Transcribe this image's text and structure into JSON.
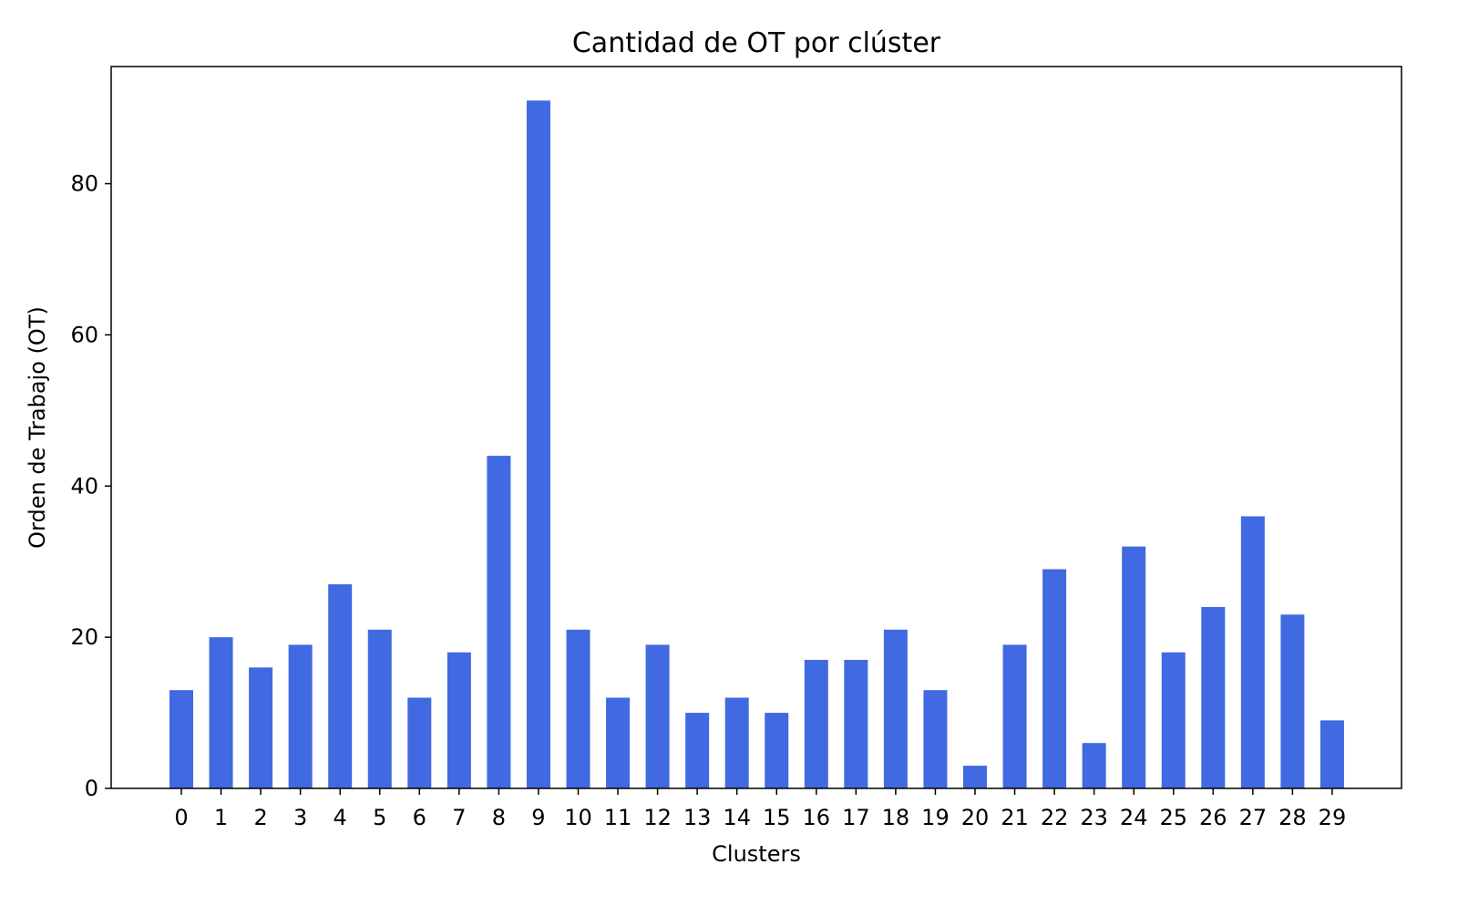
{
  "chart_data": {
    "type": "bar",
    "title": "Cantidad de OT por clúster",
    "xlabel": "Clusters",
    "ylabel": "Orden de Trabajo (OT)",
    "categories": [
      "0",
      "1",
      "2",
      "3",
      "4",
      "5",
      "6",
      "7",
      "8",
      "9",
      "10",
      "11",
      "12",
      "13",
      "14",
      "15",
      "16",
      "17",
      "18",
      "19",
      "20",
      "21",
      "22",
      "23",
      "24",
      "25",
      "26",
      "27",
      "28",
      "29"
    ],
    "values": [
      13,
      20,
      16,
      19,
      27,
      21,
      12,
      18,
      44,
      91,
      21,
      12,
      19,
      10,
      12,
      10,
      17,
      17,
      21,
      13,
      3,
      19,
      29,
      6,
      32,
      18,
      24,
      36,
      23,
      9
    ],
    "ylim": [
      0,
      95.5
    ],
    "yticks": [
      0,
      20,
      40,
      60,
      80
    ],
    "bar_color": "#4169e1",
    "grid": false,
    "legend": false
  }
}
